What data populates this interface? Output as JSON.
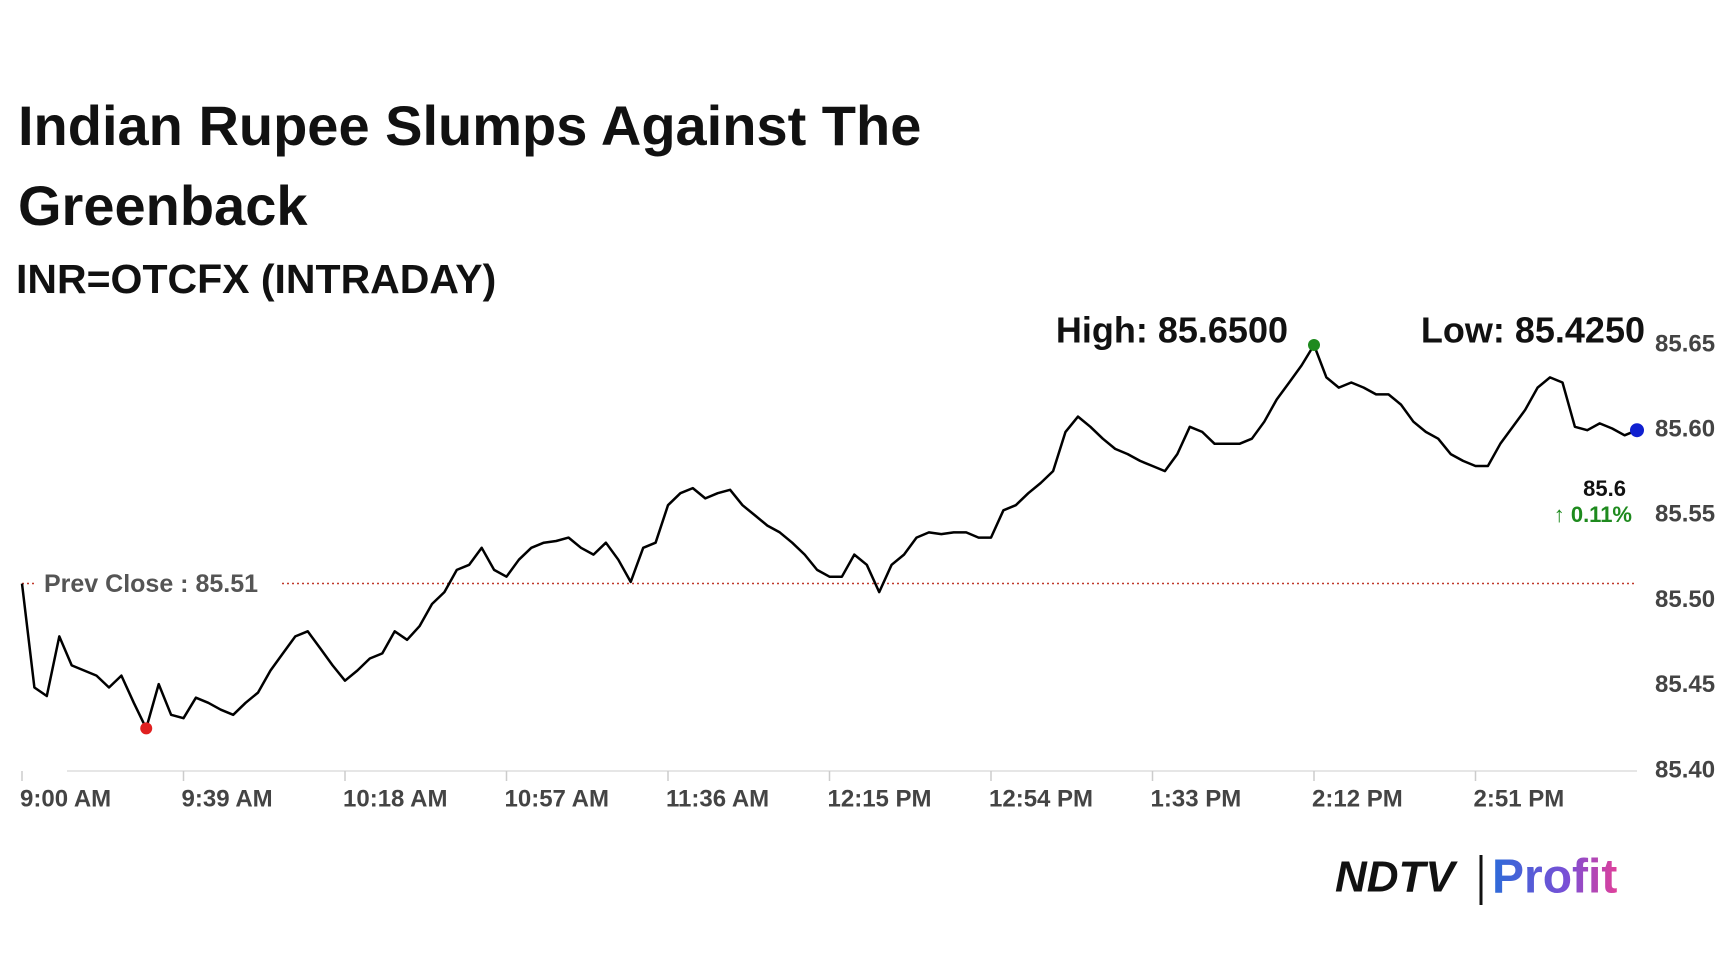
{
  "chart_data": {
    "type": "line",
    "title": "Indian Rupee Slumps Against The Greenback",
    "subtitle": "INR=OTCFX (INTRADAY)",
    "categories": [
      "9:00 AM",
      null,
      null,
      null,
      null,
      null,
      null,
      null,
      null,
      null,
      null,
      null,
      null,
      "9:39 AM",
      null,
      null,
      null,
      null,
      null,
      null,
      null,
      null,
      null,
      null,
      null,
      null,
      "10:18 AM",
      null,
      null,
      null,
      null,
      null,
      null,
      null,
      null,
      null,
      null,
      null,
      null,
      "10:57 AM",
      null,
      null,
      null,
      null,
      null,
      null,
      null,
      null,
      null,
      null,
      null,
      null,
      "11:36 AM",
      null,
      null,
      null,
      null,
      null,
      null,
      null,
      null,
      null,
      null,
      null,
      null,
      "12:15 PM",
      null,
      null,
      null,
      null,
      null,
      null,
      null,
      null,
      null,
      null,
      null,
      null,
      "12:54 PM",
      null,
      null,
      null,
      null,
      null,
      null,
      null,
      null,
      null,
      null,
      null,
      null,
      "1:33 PM",
      null,
      null,
      null,
      null,
      null,
      null,
      null,
      null,
      null,
      null,
      null,
      null,
      "2:12 PM",
      null,
      null,
      null,
      null,
      null,
      null,
      null,
      null,
      null,
      null,
      null,
      null,
      "2:51 PM",
      null,
      null,
      null,
      null,
      null,
      null,
      null,
      null,
      null,
      null,
      null,
      null,
      null
    ],
    "values": [
      85.51,
      85.449,
      85.444,
      85.479,
      85.462,
      85.459,
      85.456,
      85.449,
      85.456,
      85.44,
      85.425,
      85.451,
      85.433,
      85.431,
      85.443,
      85.44,
      85.436,
      85.433,
      85.44,
      85.446,
      85.459,
      85.469,
      85.479,
      85.482,
      85.472,
      85.462,
      85.453,
      85.459,
      85.466,
      85.469,
      85.482,
      85.477,
      85.485,
      85.498,
      85.505,
      85.518,
      85.521,
      85.531,
      85.518,
      85.514,
      85.524,
      85.531,
      85.534,
      85.535,
      85.537,
      85.531,
      85.527,
      85.534,
      85.524,
      85.511,
      85.531,
      85.534,
      85.556,
      85.563,
      85.566,
      85.56,
      85.563,
      85.565,
      85.556,
      85.55,
      85.544,
      85.54,
      85.534,
      85.527,
      85.518,
      85.514,
      85.514,
      85.527,
      85.521,
      85.505,
      85.521,
      85.527,
      85.537,
      85.54,
      85.539,
      85.54,
      85.54,
      85.537,
      85.537,
      85.553,
      85.556,
      85.563,
      85.569,
      85.576,
      85.599,
      85.608,
      85.602,
      85.595,
      85.589,
      85.586,
      85.582,
      85.579,
      85.576,
      85.586,
      85.602,
      85.599,
      85.592,
      85.592,
      85.592,
      85.595,
      85.605,
      85.618,
      85.628,
      85.638,
      85.65,
      85.631,
      85.625,
      85.628,
      85.625,
      85.621,
      85.621,
      85.615,
      85.605,
      85.599,
      85.595,
      85.586,
      85.582,
      85.579,
      85.579,
      85.592,
      85.602,
      85.612,
      85.625,
      85.631,
      85.628,
      85.602,
      85.6,
      85.604,
      85.601,
      85.597,
      85.6
    ],
    "color": "#000000",
    "ylim": [
      85.4,
      85.65
    ],
    "yticks": [
      {
        "value": 85.4,
        "label": "85.40"
      },
      85.45,
      {
        "value": 85.5,
        "label": "85.50"
      },
      85.55,
      {
        "value": 85.6,
        "label": "85.60"
      },
      85.65
    ],
    "prev_close": {
      "value": 85.51,
      "label": "Prev Close : 85.51",
      "color": "#c0392b"
    },
    "high": {
      "value": 85.65,
      "label": "High: 85.6500",
      "color": "#1e8a1e"
    },
    "low": {
      "value": 85.425,
      "label": "Low: 85.4250",
      "color": "#e02020"
    },
    "last": {
      "value": 85.6,
      "label": "85.6",
      "color": "#1020d0"
    },
    "change": {
      "value": 0.11,
      "label": "↑ 0.11%",
      "color": "#1e8a1e"
    },
    "branding": {
      "left": "NDTV",
      "right": "Profit"
    }
  }
}
